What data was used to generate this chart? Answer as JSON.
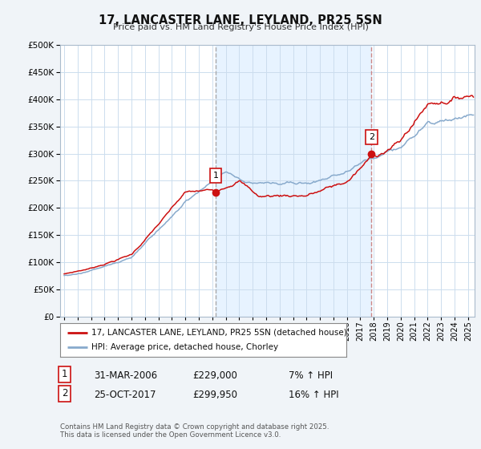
{
  "title": "17, LANCASTER LANE, LEYLAND, PR25 5SN",
  "subtitle": "Price paid vs. HM Land Registry's House Price Index (HPI)",
  "ytick_vals": [
    0,
    50000,
    100000,
    150000,
    200000,
    250000,
    300000,
    350000,
    400000,
    450000,
    500000
  ],
  "ylim": [
    0,
    500000
  ],
  "xlim_start": 1994.7,
  "xlim_end": 2025.5,
  "hpi_color": "#88aacc",
  "price_color": "#cc1111",
  "sale1_dash_color": "#aaaaaa",
  "sale2_dash_color": "#cc8888",
  "shade_color": "#ddeeff",
  "sale1_x": 2006.25,
  "sale1_y": 229000,
  "sale1_label": "1",
  "sale2_x": 2017.82,
  "sale2_y": 299950,
  "sale2_label": "2",
  "legend_price": "17, LANCASTER LANE, LEYLAND, PR25 5SN (detached house)",
  "legend_hpi": "HPI: Average price, detached house, Chorley",
  "annotation1_date": "31-MAR-2006",
  "annotation1_price": "£229,000",
  "annotation1_hpi": "7% ↑ HPI",
  "annotation2_date": "25-OCT-2017",
  "annotation2_price": "£299,950",
  "annotation2_hpi": "16% ↑ HPI",
  "footer": "Contains HM Land Registry data © Crown copyright and database right 2025.\nThis data is licensed under the Open Government Licence v3.0.",
  "bg_color": "#f0f4f8",
  "plot_bg_color": "#ffffff",
  "grid_color": "#ccddee"
}
